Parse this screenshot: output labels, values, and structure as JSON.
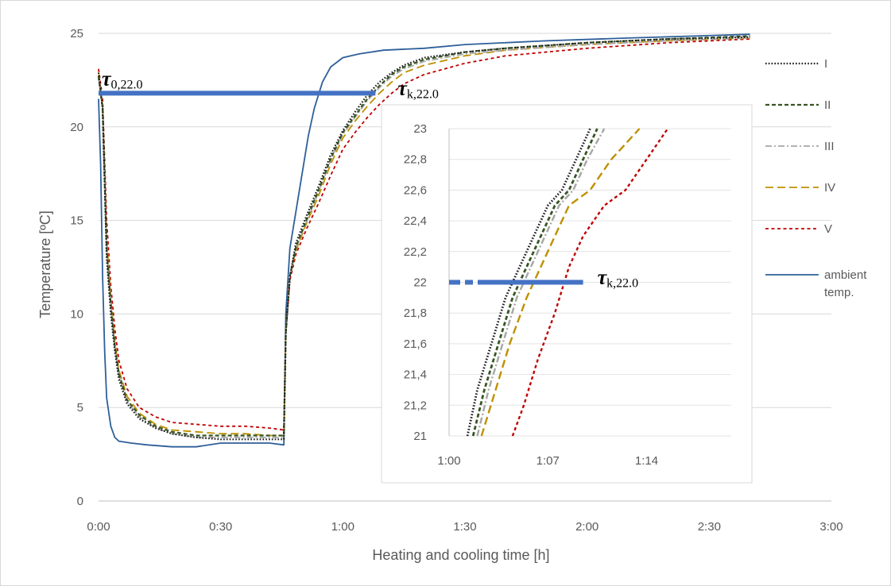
{
  "chart_data": [
    {
      "type": "line",
      "xlabel": "Heating and cooling time [h]",
      "ylabel": "Temperature [ºC]",
      "xlim": [
        0,
        180
      ],
      "ylim": [
        0,
        25
      ],
      "x_ticks": [
        "0:00",
        "0:30",
        "1:00",
        "1:30",
        "2:00",
        "2:30",
        "3:00"
      ],
      "x_tick_values": [
        0,
        30,
        60,
        90,
        120,
        150,
        180
      ],
      "y_ticks": [
        "0",
        "5",
        "10",
        "15",
        "20",
        "25"
      ],
      "y_tick_values": [
        0,
        5,
        10,
        15,
        20,
        25
      ],
      "grid": "horizontal",
      "legend": "right",
      "x_unit": "minutes",
      "series": [
        {
          "name": "I",
          "color": "#1a1a1a",
          "dash": "dotted",
          "points": [
            [
              0,
              22.9
            ],
            [
              1,
              21
            ],
            [
              2,
              13
            ],
            [
              3,
              10
            ],
            [
              4,
              8
            ],
            [
              5,
              6.5
            ],
            [
              7,
              5.2
            ],
            [
              10,
              4.4
            ],
            [
              14,
              3.9
            ],
            [
              18,
              3.6
            ],
            [
              24,
              3.4
            ],
            [
              30,
              3.3
            ],
            [
              36,
              3.3
            ],
            [
              42,
              3.3
            ],
            [
              45.5,
              3.3
            ],
            [
              46,
              9
            ],
            [
              47,
              12
            ],
            [
              48.5,
              13.8
            ],
            [
              51,
              15.2
            ],
            [
              54,
              16.8
            ],
            [
              57,
              18.5
            ],
            [
              60,
              19.8
            ],
            [
              63,
              20.8
            ],
            [
              66,
              21.7
            ],
            [
              69,
              22.4
            ],
            [
              72,
              22.9
            ],
            [
              75,
              23.3
            ],
            [
              80,
              23.7
            ],
            [
              90,
              24
            ],
            [
              100,
              24.2
            ],
            [
              120,
              24.5
            ],
            [
              140,
              24.7
            ],
            [
              160,
              24.8
            ]
          ]
        },
        {
          "name": "II",
          "color": "#375623",
          "dash": "dashed",
          "points": [
            [
              0,
              22.7
            ],
            [
              1,
              21
            ],
            [
              2,
              13.5
            ],
            [
              3,
              10.5
            ],
            [
              4,
              8.3
            ],
            [
              5,
              6.8
            ],
            [
              7,
              5.4
            ],
            [
              10,
              4.6
            ],
            [
              14,
              4
            ],
            [
              18,
              3.7
            ],
            [
              24,
              3.5
            ],
            [
              30,
              3.5
            ],
            [
              36,
              3.5
            ],
            [
              42,
              3.5
            ],
            [
              45.5,
              3.5
            ],
            [
              46,
              9
            ],
            [
              47,
              12
            ],
            [
              48.5,
              13.6
            ],
            [
              51,
              15
            ],
            [
              54,
              16.6
            ],
            [
              57,
              18.3
            ],
            [
              60,
              19.7
            ],
            [
              63,
              20.6
            ],
            [
              66,
              21.5
            ],
            [
              69,
              22.2
            ],
            [
              72,
              22.8
            ],
            [
              75,
              23.2
            ],
            [
              80,
              23.6
            ],
            [
              90,
              24
            ],
            [
              100,
              24.2
            ],
            [
              120,
              24.5
            ],
            [
              140,
              24.7
            ],
            [
              160,
              24.85
            ]
          ]
        },
        {
          "name": "III",
          "color": "#a6a6a6",
          "dash": "dashdot",
          "points": [
            [
              0,
              22.6
            ],
            [
              1,
              21
            ],
            [
              2,
              13.5
            ],
            [
              3,
              10.5
            ],
            [
              4,
              8.2
            ],
            [
              5,
              6.7
            ],
            [
              7,
              5.3
            ],
            [
              10,
              4.5
            ],
            [
              14,
              3.9
            ],
            [
              18,
              3.6
            ],
            [
              24,
              3.4
            ],
            [
              30,
              3.4
            ],
            [
              36,
              3.4
            ],
            [
              42,
              3.4
            ],
            [
              45.5,
              3.4
            ],
            [
              46,
              9
            ],
            [
              47,
              12
            ],
            [
              48.5,
              13.5
            ],
            [
              51,
              14.9
            ],
            [
              54,
              16.5
            ],
            [
              57,
              18.2
            ],
            [
              60,
              19.6
            ],
            [
              63,
              20.5
            ],
            [
              66,
              21.4
            ],
            [
              69,
              22.1
            ],
            [
              72,
              22.7
            ],
            [
              75,
              23.1
            ],
            [
              80,
              23.5
            ],
            [
              90,
              23.9
            ],
            [
              100,
              24.1
            ],
            [
              120,
              24.4
            ],
            [
              140,
              24.6
            ],
            [
              160,
              24.75
            ]
          ]
        },
        {
          "name": "IV",
          "color": "#bf9000",
          "dash": "longdash",
          "points": [
            [
              0,
              22.8
            ],
            [
              1,
              21
            ],
            [
              2,
              14
            ],
            [
              3,
              10.8
            ],
            [
              4,
              8.5
            ],
            [
              5,
              7
            ],
            [
              7,
              5.6
            ],
            [
              10,
              4.7
            ],
            [
              14,
              4.1
            ],
            [
              18,
              3.8
            ],
            [
              24,
              3.7
            ],
            [
              30,
              3.6
            ],
            [
              36,
              3.6
            ],
            [
              42,
              3.5
            ],
            [
              45.5,
              3.5
            ],
            [
              46,
              9
            ],
            [
              47,
              12
            ],
            [
              48.5,
              13.4
            ],
            [
              51,
              14.8
            ],
            [
              54,
              16.3
            ],
            [
              57,
              18
            ],
            [
              60,
              19.4
            ],
            [
              63,
              20.3
            ],
            [
              66,
              21.1
            ],
            [
              69,
              21.8
            ],
            [
              72,
              22.4
            ],
            [
              75,
              22.9
            ],
            [
              80,
              23.3
            ],
            [
              90,
              23.8
            ],
            [
              100,
              24.1
            ],
            [
              120,
              24.4
            ],
            [
              140,
              24.6
            ],
            [
              160,
              24.75
            ]
          ]
        },
        {
          "name": "V",
          "color": "#c00000",
          "dash": "shortdash",
          "points": [
            [
              0,
              23.1
            ],
            [
              1,
              21.5
            ],
            [
              2,
              15
            ],
            [
              3,
              11.5
            ],
            [
              4,
              9.2
            ],
            [
              5,
              7.5
            ],
            [
              7,
              6
            ],
            [
              10,
              5
            ],
            [
              14,
              4.5
            ],
            [
              18,
              4.2
            ],
            [
              24,
              4.1
            ],
            [
              30,
              4
            ],
            [
              36,
              4
            ],
            [
              42,
              3.9
            ],
            [
              45.5,
              3.8
            ],
            [
              46,
              9
            ],
            [
              47,
              11.8
            ],
            [
              48.5,
              13.2
            ],
            [
              51,
              14.5
            ],
            [
              54,
              15.9
            ],
            [
              57,
              17.4
            ],
            [
              60,
              18.8
            ],
            [
              63,
              19.7
            ],
            [
              66,
              20.5
            ],
            [
              69,
              21.2
            ],
            [
              72,
              21.8
            ],
            [
              75,
              22.3
            ],
            [
              80,
              22.8
            ],
            [
              90,
              23.4
            ],
            [
              100,
              23.8
            ],
            [
              120,
              24.2
            ],
            [
              140,
              24.5
            ],
            [
              160,
              24.7
            ]
          ]
        },
        {
          "name": "ambient temp.",
          "color": "#2e5f9a",
          "dash": "solid",
          "points": [
            [
              0,
              21.5
            ],
            [
              0.5,
              18
            ],
            [
              1,
              12
            ],
            [
              1.5,
              8
            ],
            [
              2,
              5.5
            ],
            [
              3,
              4
            ],
            [
              4,
              3.4
            ],
            [
              5,
              3.2
            ],
            [
              8,
              3.1
            ],
            [
              12,
              3
            ],
            [
              18,
              2.9
            ],
            [
              24,
              2.9
            ],
            [
              30,
              3.1
            ],
            [
              36,
              3.1
            ],
            [
              42,
              3.1
            ],
            [
              45.5,
              3
            ],
            [
              46,
              10
            ],
            [
              47,
              13.5
            ],
            [
              48.5,
              15.5
            ],
            [
              50,
              17.5
            ],
            [
              51.5,
              19.5
            ],
            [
              53,
              21
            ],
            [
              55,
              22.4
            ],
            [
              57,
              23.2
            ],
            [
              60,
              23.7
            ],
            [
              64,
              23.9
            ],
            [
              70,
              24.1
            ],
            [
              80,
              24.2
            ],
            [
              90,
              24.4
            ],
            [
              110,
              24.6
            ],
            [
              130,
              24.75
            ],
            [
              160,
              24.95
            ]
          ]
        }
      ],
      "annotations": [
        {
          "base": "τ",
          "sub": "0,22.0",
          "x": 0,
          "y": 21.8
        },
        {
          "base": "τ",
          "sub": "k,22.0",
          "x": 68,
          "y": 21.8
        }
      ],
      "reference_line": {
        "y": 21.8,
        "x_from": 0,
        "x_to": 68,
        "color": "#4472c4"
      }
    },
    {
      "type": "line",
      "role": "inset",
      "xlim": [
        60,
        80
      ],
      "ylim": [
        21,
        23
      ],
      "x_ticks": [
        "1:00",
        "1:07",
        "1:14"
      ],
      "x_tick_values": [
        60,
        67,
        74
      ],
      "y_ticks": [
        "21",
        "21,2",
        "21,4",
        "21,6",
        "21,8",
        "22",
        "22,2",
        "22,4",
        "22,6",
        "22,8",
        "23"
      ],
      "y_tick_values": [
        21,
        21.2,
        21.4,
        21.6,
        21.8,
        22,
        22.2,
        22.4,
        22.6,
        22.8,
        23
      ],
      "grid": "horizontal",
      "series": [
        {
          "name": "I",
          "color": "#1a1a1a",
          "dash": "dotted",
          "points": [
            [
              61.3,
              21
            ],
            [
              62,
              21.3
            ],
            [
              63,
              21.6
            ],
            [
              64,
              21.9
            ],
            [
              65,
              22.1
            ],
            [
              66,
              22.3
            ],
            [
              67,
              22.5
            ],
            [
              68,
              22.6
            ],
            [
              69,
              22.8
            ],
            [
              70,
              23
            ]
          ]
        },
        {
          "name": "II",
          "color": "#375623",
          "dash": "dashed",
          "points": [
            [
              61.7,
              21
            ],
            [
              62.5,
              21.3
            ],
            [
              63.5,
              21.6
            ],
            [
              64.5,
              21.9
            ],
            [
              65.5,
              22.1
            ],
            [
              66.5,
              22.3
            ],
            [
              67.5,
              22.5
            ],
            [
              68.5,
              22.6
            ],
            [
              69.5,
              22.8
            ],
            [
              70.5,
              23
            ]
          ]
        },
        {
          "name": "III",
          "color": "#a6a6a6",
          "dash": "dashdot",
          "points": [
            [
              62,
              21
            ],
            [
              62.8,
              21.3
            ],
            [
              63.8,
              21.6
            ],
            [
              64.8,
              21.9
            ],
            [
              65.8,
              22.1
            ],
            [
              66.8,
              22.3
            ],
            [
              67.8,
              22.5
            ],
            [
              68.8,
              22.6
            ],
            [
              69.8,
              22.8
            ],
            [
              71,
              23
            ]
          ]
        },
        {
          "name": "IV",
          "color": "#bf9000",
          "dash": "longdash",
          "points": [
            [
              62.3,
              21
            ],
            [
              63.3,
              21.3
            ],
            [
              64.3,
              21.6
            ],
            [
              65.5,
              21.9
            ],
            [
              66.5,
              22.1
            ],
            [
              67.5,
              22.3
            ],
            [
              68.5,
              22.5
            ],
            [
              70,
              22.6
            ],
            [
              71.5,
              22.8
            ],
            [
              73.5,
              23
            ]
          ]
        },
        {
          "name": "V",
          "color": "#c00000",
          "dash": "shortdash",
          "points": [
            [
              64.5,
              21
            ],
            [
              65.3,
              21.2
            ],
            [
              66.3,
              21.5
            ],
            [
              67.5,
              21.8
            ],
            [
              68.5,
              22.1
            ],
            [
              69.5,
              22.3
            ],
            [
              71,
              22.5
            ],
            [
              72.5,
              22.6
            ],
            [
              74,
              22.8
            ],
            [
              75.5,
              23
            ]
          ]
        }
      ],
      "annotations": [
        {
          "base": "τ",
          "sub": "k,22.0",
          "x": 69.5,
          "y": 22
        }
      ],
      "reference_line": {
        "y": 22,
        "x_from": 60,
        "x_to": 69.5,
        "color": "#4472c4"
      }
    }
  ]
}
